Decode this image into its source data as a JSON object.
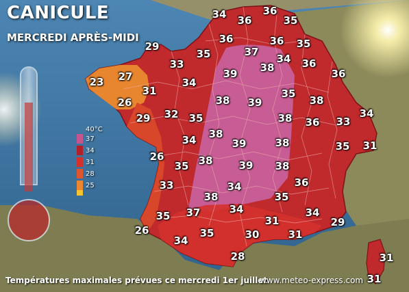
{
  "title": "CANICULE",
  "subtitle": "MERCREDI APRÈS-MIDI",
  "footer": {
    "caption": "Températures maximales prévues ce mercredi 1er juillet",
    "website": "www.meteo-express.com"
  },
  "legend": {
    "unit": "40°C",
    "levels": [
      {
        "label": "37",
        "color": "#c5558f"
      },
      {
        "label": "34",
        "color": "#b3202a"
      },
      {
        "label": "31",
        "color": "#d4312c"
      },
      {
        "label": "28",
        "color": "#e0552e"
      },
      {
        "label": "25",
        "color": "#ee8630"
      }
    ],
    "bottom_color": "#f6c431"
  },
  "colors": {
    "sea": "#3f79a6",
    "land_abroad": "#8a8a5c",
    "france_base": "#c02a2d",
    "hot_zone": "#c7609a",
    "west_coast": "#d9472b",
    "brittany": "#e8852f",
    "sun": "#fff6b0",
    "department_border": "#f0b0b0"
  },
  "temperatures": [
    {
      "value": "34"
    },
    {
      "value": "36"
    },
    {
      "value": "36"
    },
    {
      "value": "35"
    },
    {
      "value": "36"
    },
    {
      "value": "35"
    },
    {
      "value": "36"
    },
    {
      "value": "29"
    },
    {
      "value": "35"
    },
    {
      "value": "37"
    },
    {
      "value": "34"
    },
    {
      "value": "33"
    },
    {
      "value": "27"
    },
    {
      "value": "39"
    },
    {
      "value": "38"
    },
    {
      "value": "36"
    },
    {
      "value": "23"
    },
    {
      "value": "34"
    },
    {
      "value": "36"
    },
    {
      "value": "31"
    },
    {
      "value": "35"
    },
    {
      "value": "38"
    },
    {
      "value": "39"
    },
    {
      "value": "38"
    },
    {
      "value": "26"
    },
    {
      "value": "32"
    },
    {
      "value": "35"
    },
    {
      "value": "38"
    },
    {
      "value": "36"
    },
    {
      "value": "33"
    },
    {
      "value": "34"
    },
    {
      "value": "29"
    },
    {
      "value": "38"
    },
    {
      "value": "39"
    },
    {
      "value": "38"
    },
    {
      "value": "34"
    },
    {
      "value": "35"
    },
    {
      "value": "31"
    },
    {
      "value": "26"
    },
    {
      "value": "35"
    },
    {
      "value": "38"
    },
    {
      "value": "39"
    },
    {
      "value": "38"
    },
    {
      "value": "36"
    },
    {
      "value": "33"
    },
    {
      "value": "34"
    },
    {
      "value": "38"
    },
    {
      "value": "35"
    },
    {
      "value": "34"
    },
    {
      "value": "35"
    },
    {
      "value": "37"
    },
    {
      "value": "34"
    },
    {
      "value": "31"
    },
    {
      "value": "29"
    },
    {
      "value": "26"
    },
    {
      "value": "35"
    },
    {
      "value": "30"
    },
    {
      "value": "31"
    },
    {
      "value": "34"
    },
    {
      "value": "28"
    },
    {
      "value": "31"
    },
    {
      "value": "31"
    }
  ]
}
